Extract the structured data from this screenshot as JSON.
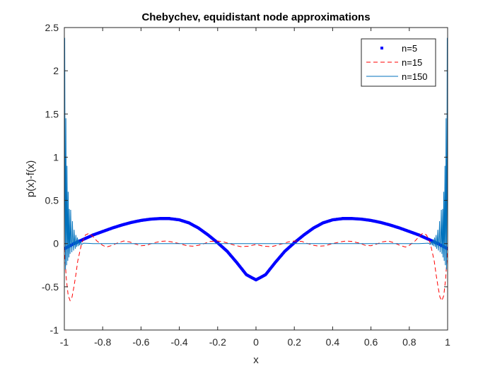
{
  "chart_data": {
    "type": "line",
    "title": "Chebychev, equidistant node approximations",
    "xlabel": "x",
    "ylabel": "p(x)-f(x)",
    "xlim": [
      -1,
      1
    ],
    "ylim": [
      -1,
      2.5
    ],
    "xticks": [
      -1,
      -0.8,
      -0.6,
      -0.4,
      -0.2,
      0,
      0.2,
      0.4,
      0.6,
      0.8,
      1
    ],
    "xtick_labels": [
      "-1",
      "-0.8",
      "-0.6",
      "-0.4",
      "-0.2",
      "0",
      "0.2",
      "0.4",
      "0.6",
      "0.8",
      "1"
    ],
    "yticks": [
      -1,
      -0.5,
      0,
      0.5,
      1,
      1.5,
      2,
      2.5
    ],
    "ytick_labels": [
      "-1",
      "-0.5",
      "0",
      "0.5",
      "1",
      "1.5",
      "2",
      "2.5"
    ],
    "grid": false,
    "legend_position": "top-right",
    "series": [
      {
        "name": "n=5",
        "style": "dots",
        "color": "#0000ff",
        "x": [
          -1,
          -0.95,
          -0.9,
          -0.85,
          -0.8,
          -0.75,
          -0.7,
          -0.65,
          -0.6,
          -0.55,
          -0.5,
          -0.47,
          -0.45,
          -0.4,
          -0.35,
          -0.3,
          -0.25,
          -0.2,
          -0.15,
          -0.1,
          -0.05,
          0,
          0.05,
          0.1,
          0.15,
          0.2,
          0.25,
          0.3,
          0.35,
          0.4,
          0.45,
          0.47,
          0.5,
          0.55,
          0.6,
          0.65,
          0.7,
          0.75,
          0.8,
          0.85,
          0.9,
          0.95,
          1
        ],
        "y": [
          -0.06,
          0.0,
          0.05,
          0.1,
          0.14,
          0.18,
          0.215,
          0.245,
          0.268,
          0.283,
          0.29,
          0.29,
          0.289,
          0.275,
          0.24,
          0.18,
          0.1,
          0.01,
          -0.09,
          -0.22,
          -0.36,
          -0.42,
          -0.36,
          -0.22,
          -0.09,
          0.01,
          0.1,
          0.18,
          0.24,
          0.275,
          0.289,
          0.29,
          0.29,
          0.283,
          0.268,
          0.245,
          0.215,
          0.18,
          0.14,
          0.1,
          0.05,
          0.0,
          -0.06
        ]
      },
      {
        "name": "n=15",
        "style": "dashed",
        "color": "#ff0000",
        "x": [
          -1,
          -0.99,
          -0.98,
          -0.97,
          -0.96,
          -0.95,
          -0.94,
          -0.93,
          -0.91,
          -0.89,
          -0.87,
          -0.85,
          -0.83,
          -0.8,
          -0.78,
          -0.75,
          -0.72,
          -0.69,
          -0.66,
          -0.63,
          -0.6,
          -0.57,
          -0.54,
          -0.5,
          -0.47,
          -0.44,
          -0.4,
          -0.36,
          -0.33,
          -0.3,
          -0.27,
          -0.24,
          -0.2,
          -0.17,
          -0.14,
          -0.11,
          -0.08,
          -0.04,
          0,
          0.04,
          0.08,
          0.11,
          0.14,
          0.17,
          0.2,
          0.24,
          0.27,
          0.3,
          0.33,
          0.36,
          0.4,
          0.44,
          0.47,
          0.5,
          0.54,
          0.57,
          0.6,
          0.63,
          0.66,
          0.69,
          0.72,
          0.75,
          0.78,
          0.8,
          0.83,
          0.85,
          0.87,
          0.89,
          0.91,
          0.93,
          0.94,
          0.95,
          0.96,
          0.97,
          0.98,
          0.99,
          1
        ],
        "y": [
          -0.05,
          -0.4,
          -0.6,
          -0.66,
          -0.62,
          -0.5,
          -0.36,
          -0.2,
          0.0,
          0.1,
          0.12,
          0.08,
          0.03,
          -0.02,
          -0.04,
          -0.02,
          0.01,
          0.03,
          0.02,
          -0.005,
          -0.025,
          -0.02,
          0.005,
          0.025,
          0.03,
          0.02,
          0.0,
          -0.025,
          -0.03,
          -0.02,
          0.0,
          0.025,
          0.03,
          0.02,
          0.0,
          -0.02,
          -0.035,
          -0.03,
          -0.01,
          -0.03,
          -0.035,
          -0.02,
          0.0,
          0.02,
          0.03,
          0.025,
          0.0,
          -0.02,
          -0.03,
          -0.025,
          0.0,
          0.02,
          0.03,
          0.025,
          0.005,
          -0.02,
          -0.025,
          -0.005,
          0.02,
          0.03,
          0.01,
          -0.02,
          -0.04,
          -0.02,
          0.03,
          0.08,
          0.12,
          0.1,
          0.0,
          -0.2,
          -0.36,
          -0.5,
          -0.62,
          -0.66,
          -0.6,
          -0.4,
          -0.05
        ]
      },
      {
        "name": "n=150",
        "style": "solid",
        "color": "#0072bd",
        "x": [
          -1,
          -0.998,
          -0.996,
          -0.994,
          -0.992,
          -0.99,
          -0.988,
          -0.986,
          -0.984,
          -0.982,
          -0.98,
          -0.978,
          -0.976,
          -0.974,
          -0.972,
          -0.97,
          -0.967,
          -0.964,
          -0.961,
          -0.958,
          -0.955,
          -0.952,
          -0.949,
          -0.946,
          -0.943,
          -0.94,
          -0.936,
          -0.932,
          -0.928,
          -0.924,
          -0.92,
          -0.915,
          -0.91,
          -0.9,
          -0.85,
          -0.8,
          0.8,
          0.85,
          0.9,
          0.91,
          0.915,
          0.92,
          0.924,
          0.928,
          0.932,
          0.936,
          0.94,
          0.943,
          0.946,
          0.949,
          0.952,
          0.955,
          0.958,
          0.961,
          0.964,
          0.967,
          0.97,
          0.972,
          0.974,
          0.976,
          0.978,
          0.98,
          0.982,
          0.984,
          0.986,
          0.988,
          0.99,
          0.992,
          0.994,
          0.996,
          0.998,
          1
        ],
        "y": [
          -0.05,
          2.38,
          0.5,
          -0.3,
          1.45,
          0.3,
          -0.25,
          0.9,
          0.2,
          -0.2,
          0.6,
          0.1,
          -0.16,
          0.4,
          0.05,
          -0.12,
          0.39,
          0.03,
          -0.1,
          0.26,
          0.02,
          -0.08,
          0.16,
          0.01,
          -0.06,
          0.1,
          -0.04,
          0.07,
          -0.03,
          0.05,
          -0.02,
          0.03,
          -0.01,
          0.005,
          0.0,
          0.0,
          0.0,
          0.0,
          0.005,
          -0.01,
          0.03,
          -0.02,
          0.05,
          -0.03,
          0.07,
          -0.04,
          0.1,
          -0.06,
          0.01,
          0.16,
          -0.08,
          0.02,
          0.26,
          -0.1,
          0.03,
          0.39,
          -0.12,
          0.05,
          0.4,
          -0.16,
          0.1,
          0.6,
          -0.2,
          0.2,
          0.9,
          -0.25,
          0.3,
          1.45,
          -0.3,
          0.5,
          2.38,
          -0.05
        ]
      }
    ]
  }
}
